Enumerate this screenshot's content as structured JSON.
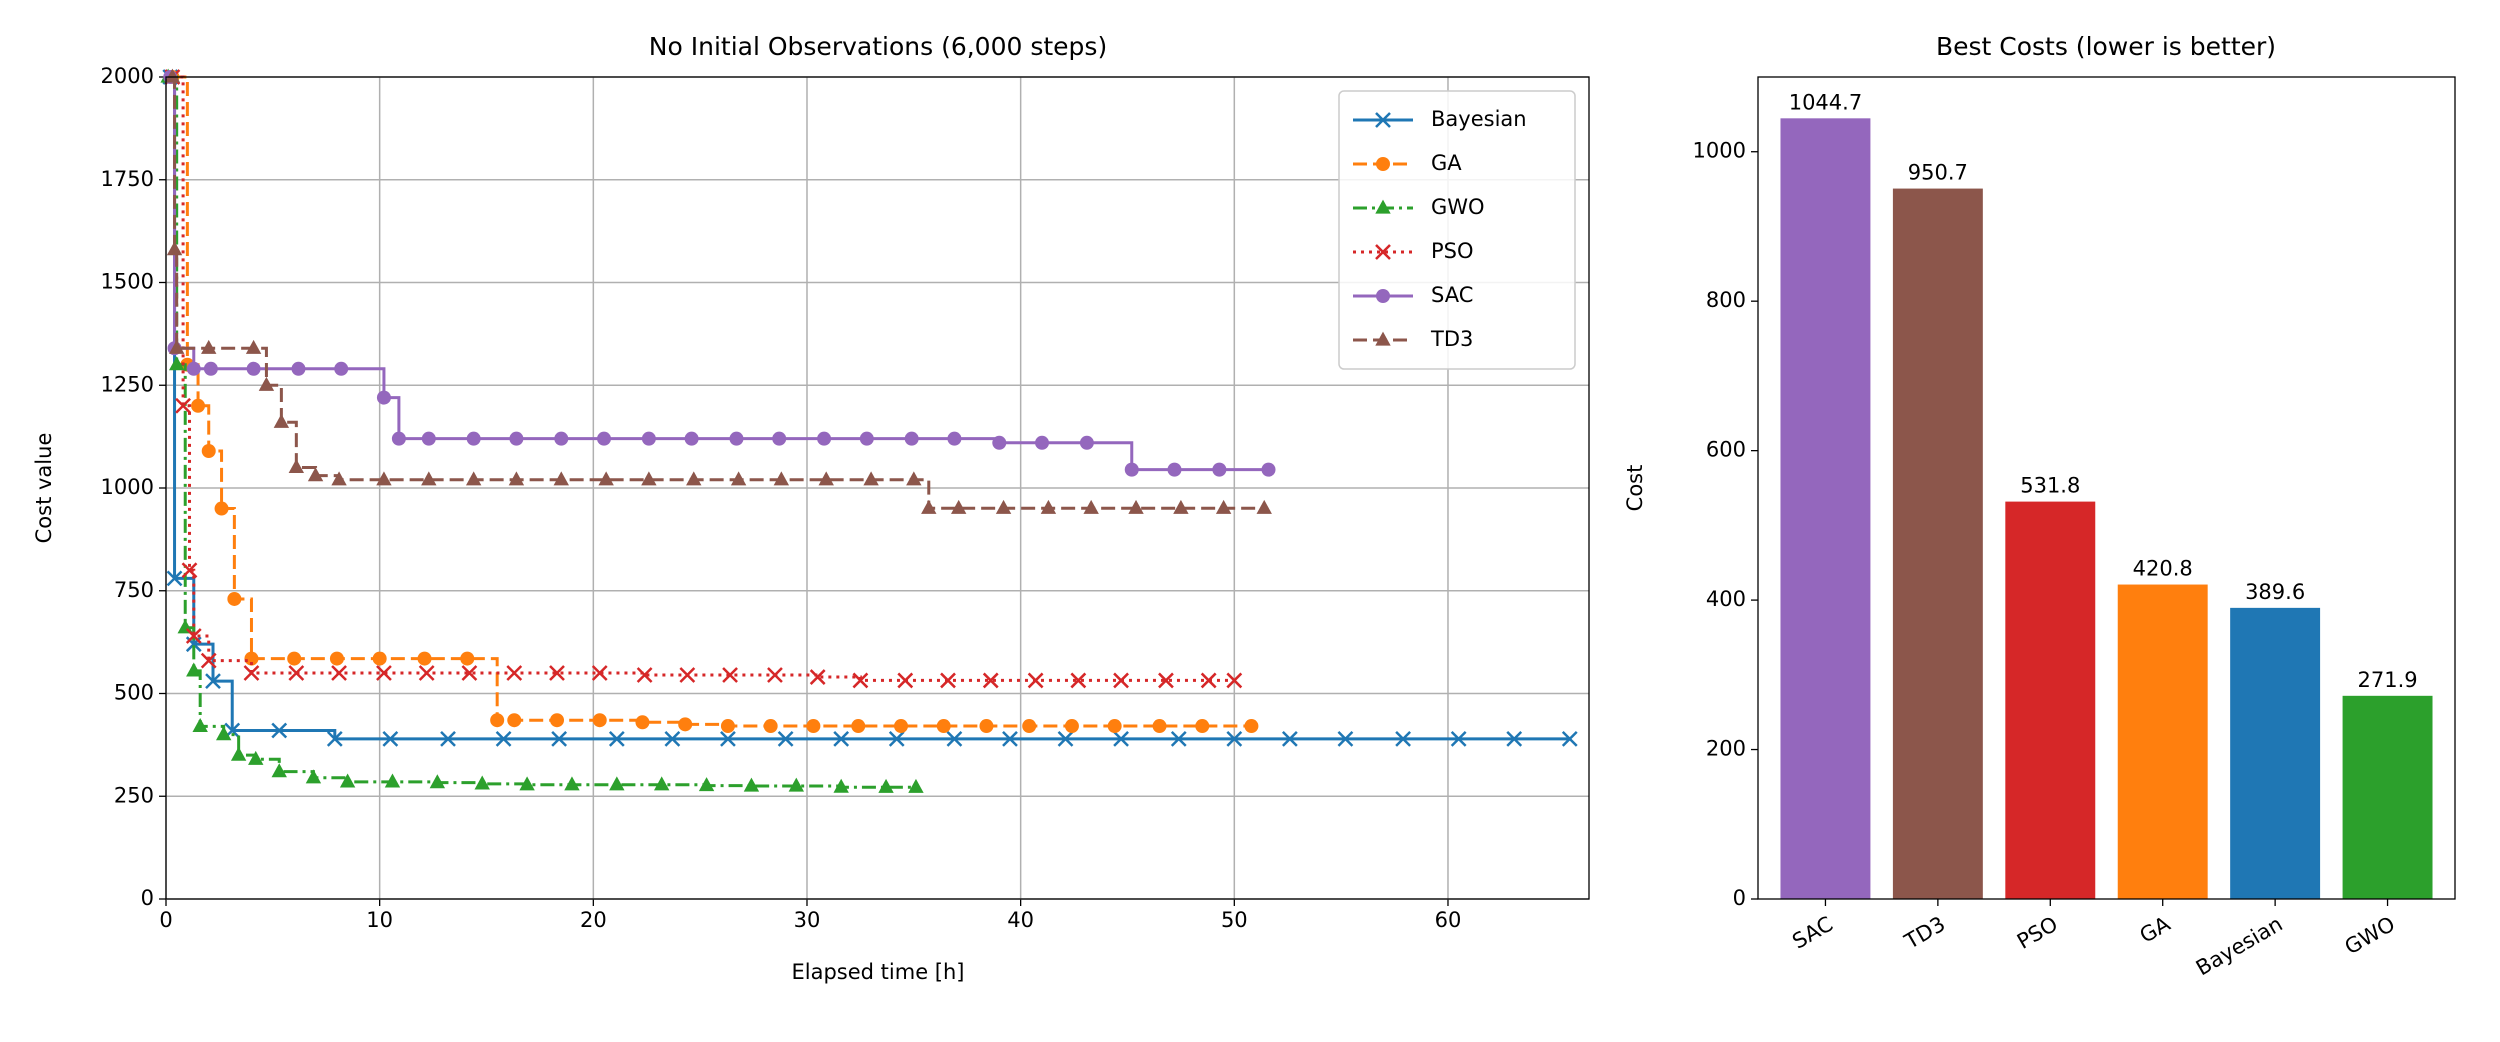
{
  "chart_data": [
    {
      "type": "line",
      "title": "No Initial Observations (6,000 steps)",
      "xlabel": "Elapsed time [h]",
      "ylabel": "Cost value",
      "xlim": [
        0,
        66.6
      ],
      "ylim": [
        0,
        2000
      ],
      "xticks": [
        0,
        10,
        20,
        30,
        40,
        50,
        60
      ],
      "yticks": [
        0,
        250,
        500,
        750,
        1000,
        1250,
        1500,
        1750,
        2000
      ],
      "grid": true,
      "legend": "upper right",
      "drawstyle": "steps-post",
      "series": [
        {
          "name": "Bayesian",
          "color": "#1f77b4",
          "linestyle": "solid",
          "marker": "x",
          "x": [
            0.2,
            0.4,
            1.3,
            2.2,
            3.1,
            5.3,
            7.9,
            10.5,
            13.2,
            15.8,
            18.4,
            21.1,
            23.7,
            26.3,
            29.0,
            31.6,
            34.2,
            36.9,
            39.5,
            42.1,
            44.7,
            47.4,
            50.0,
            52.6,
            55.2,
            57.9,
            60.5,
            63.1,
            65.7
          ],
          "values": [
            2000,
            780,
            620,
            530,
            410,
            410,
            389.6,
            389.6,
            389.6,
            389.6,
            389.6,
            389.6,
            389.6,
            389.6,
            389.6,
            389.6,
            389.6,
            389.6,
            389.6,
            389.6,
            389.6,
            389.6,
            389.6,
            389.6,
            389.6,
            389.6,
            389.6,
            389.6,
            389.6
          ]
        },
        {
          "name": "GA",
          "color": "#ff7f0e",
          "linestyle": "dashed",
          "marker": "o",
          "x": [
            0.3,
            1.0,
            1.5,
            2.0,
            2.6,
            3.2,
            4.0,
            6.0,
            8.0,
            10.0,
            12.1,
            14.1,
            15.5,
            16.3,
            18.3,
            20.3,
            22.3,
            24.3,
            26.3,
            28.3,
            30.3,
            32.4,
            34.4,
            36.4,
            38.4,
            40.4,
            42.4,
            44.4,
            46.5,
            48.5,
            50.8
          ],
          "values": [
            2000,
            1300,
            1200,
            1090,
            950,
            730,
            585,
            585,
            585,
            585,
            585,
            585,
            435,
            435,
            435,
            435,
            430,
            425,
            420.8,
            420.8,
            420.8,
            420.8,
            420.8,
            420.8,
            420.8,
            420.8,
            420.8,
            420.8,
            420.8,
            420.8,
            420.8
          ]
        },
        {
          "name": "GWO",
          "color": "#2ca02c",
          "linestyle": "dashdot",
          "marker": "^",
          "x": [
            0.1,
            0.5,
            0.9,
            1.3,
            1.6,
            2.7,
            3.4,
            4.2,
            5.3,
            6.9,
            8.5,
            10.6,
            12.7,
            14.8,
            16.9,
            19.0,
            21.1,
            23.2,
            25.3,
            27.4,
            29.5,
            31.6,
            33.7,
            35.1
          ],
          "values": [
            2000,
            1300,
            660,
            555,
            420,
            400,
            350,
            340,
            310,
            295,
            285,
            285,
            283,
            280,
            278,
            278,
            278,
            278,
            276,
            275,
            275,
            272,
            271.9,
            271.9
          ]
        },
        {
          "name": "PSO",
          "color": "#d62728",
          "linestyle": "dotted",
          "marker": "x",
          "x": [
            0.3,
            0.8,
            1.1,
            1.3,
            2.0,
            4.0,
            6.1,
            8.1,
            10.2,
            12.2,
            14.2,
            16.3,
            18.3,
            20.3,
            22.4,
            24.4,
            26.4,
            28.5,
            30.5,
            32.5,
            34.6,
            36.6,
            38.6,
            40.7,
            42.7,
            44.7,
            46.8,
            48.8,
            50.0
          ],
          "values": [
            2000,
            1200,
            800,
            640,
            580,
            550,
            550,
            550,
            550,
            550,
            550,
            550,
            550,
            550,
            545,
            545,
            545,
            545,
            540,
            531.8,
            531.8,
            531.8,
            531.8,
            531.8,
            531.8,
            531.8,
            531.8,
            531.8,
            531.8
          ]
        },
        {
          "name": "SAC",
          "color": "#9467bd",
          "linestyle": "solid",
          "marker": "o",
          "x": [
            0.2,
            0.4,
            1.3,
            2.1,
            4.1,
            6.2,
            8.2,
            10.2,
            10.9,
            12.3,
            14.4,
            16.4,
            18.5,
            20.5,
            22.6,
            24.6,
            26.7,
            28.7,
            30.8,
            32.8,
            34.9,
            36.9,
            39.0,
            41.0,
            43.1,
            45.2,
            47.2,
            49.3,
            51.6
          ],
          "values": [
            2000,
            1340,
            1290,
            1290,
            1290,
            1290,
            1290,
            1220,
            1120,
            1120,
            1120,
            1120,
            1120,
            1120,
            1120,
            1120,
            1120,
            1120,
            1120,
            1120,
            1120,
            1120,
            1110,
            1110,
            1110,
            1044.7,
            1044.7,
            1044.7,
            1044.7
          ]
        },
        {
          "name": "TD3",
          "color": "#8c564b",
          "linestyle": "dashed",
          "marker": "^",
          "x": [
            0.3,
            0.4,
            0.5,
            2.0,
            4.1,
            4.7,
            5.4,
            6.1,
            7.0,
            8.1,
            10.2,
            12.3,
            14.4,
            16.4,
            18.5,
            20.6,
            22.6,
            24.7,
            26.8,
            28.8,
            30.9,
            33.0,
            35.0,
            35.7,
            37.1,
            39.2,
            41.3,
            43.3,
            45.4,
            47.5,
            49.5,
            51.4
          ],
          "values": [
            2000,
            1580,
            1340,
            1340,
            1340,
            1250,
            1160,
            1050,
            1030,
            1020,
            1020,
            1020,
            1020,
            1020,
            1020,
            1020,
            1020,
            1020,
            1020,
            1020,
            1020,
            1020,
            1020,
            950.7,
            950.7,
            950.7,
            950.7,
            950.7,
            950.7,
            950.7,
            950.7,
            950.7
          ]
        }
      ]
    },
    {
      "type": "bar",
      "title": "Best Costs (lower is better)",
      "ylabel": "Cost",
      "categories": [
        "SAC",
        "TD3",
        "PSO",
        "GA",
        "Bayesian",
        "GWO"
      ],
      "values": [
        1044.7,
        950.7,
        531.8,
        420.8,
        389.6,
        271.9
      ],
      "colors": [
        "#9467bd",
        "#8c564b",
        "#d62728",
        "#ff7f0e",
        "#1f77b4",
        "#2ca02c"
      ],
      "ylim": [
        0,
        1100
      ],
      "yticks": [
        0,
        200,
        400,
        600,
        800,
        1000
      ],
      "grid": false
    }
  ]
}
